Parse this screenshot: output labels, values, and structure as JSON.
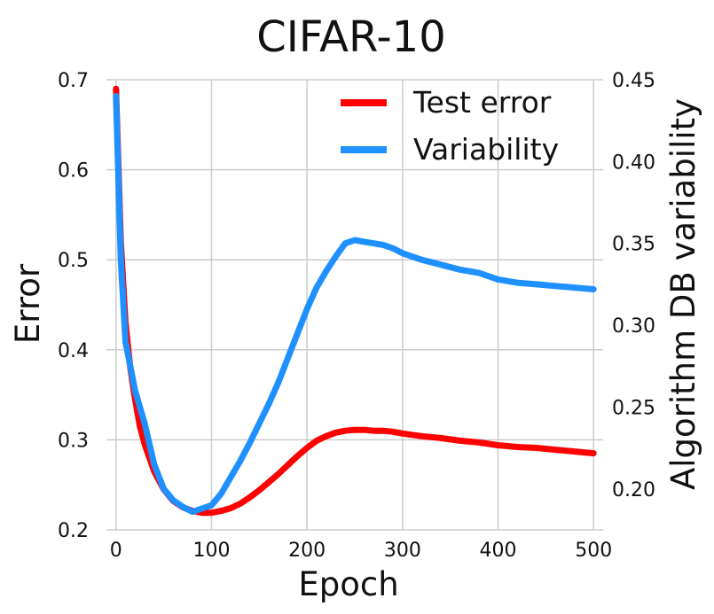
{
  "chart_data": {
    "type": "line",
    "title": "CIFAR-10",
    "xlabel": "Epoch",
    "ylabel": "Error",
    "y2label": "Algorithm DB variability",
    "xlim": [
      -10,
      510
    ],
    "ylim": [
      0.2,
      0.7
    ],
    "y2lim": [
      0.175,
      0.45
    ],
    "xticks": [
      "0",
      "100",
      "200",
      "300",
      "400",
      "500"
    ],
    "yticks": [
      "0.2",
      "0.3",
      "0.4",
      "0.5",
      "0.6",
      "0.7"
    ],
    "y2ticks": [
      "0.20",
      "0.25",
      "0.30",
      "0.35",
      "0.40",
      "0.45"
    ],
    "grid": true,
    "legend_position": "top-right",
    "series": [
      {
        "name": "Test error",
        "axis": "left",
        "color": "#ff0000",
        "x": [
          0,
          5,
          10,
          15,
          20,
          25,
          30,
          40,
          50,
          60,
          70,
          80,
          90,
          100,
          110,
          120,
          130,
          140,
          150,
          160,
          170,
          180,
          190,
          200,
          210,
          220,
          230,
          240,
          250,
          260,
          270,
          280,
          290,
          300,
          320,
          340,
          360,
          380,
          400,
          420,
          440,
          460,
          480,
          500
        ],
        "y": [
          0.69,
          0.52,
          0.43,
          0.38,
          0.345,
          0.315,
          0.295,
          0.265,
          0.245,
          0.232,
          0.225,
          0.221,
          0.219,
          0.219,
          0.221,
          0.224,
          0.229,
          0.236,
          0.244,
          0.253,
          0.262,
          0.272,
          0.282,
          0.291,
          0.299,
          0.304,
          0.308,
          0.31,
          0.311,
          0.311,
          0.31,
          0.31,
          0.309,
          0.307,
          0.304,
          0.302,
          0.299,
          0.297,
          0.294,
          0.292,
          0.291,
          0.289,
          0.287,
          0.285
        ]
      },
      {
        "name": "Variability",
        "axis": "right",
        "color": "#1e90ff",
        "x": [
          0,
          5,
          10,
          15,
          20,
          25,
          30,
          40,
          50,
          60,
          70,
          80,
          90,
          100,
          110,
          120,
          130,
          140,
          150,
          160,
          170,
          180,
          190,
          200,
          210,
          220,
          230,
          240,
          250,
          260,
          270,
          280,
          290,
          300,
          320,
          340,
          360,
          380,
          400,
          420,
          440,
          460,
          480,
          500
        ],
        "y": [
          0.44,
          0.34,
          0.29,
          0.275,
          0.26,
          0.25,
          0.24,
          0.215,
          0.2,
          0.193,
          0.189,
          0.186,
          0.188,
          0.19,
          0.197,
          0.207,
          0.217,
          0.228,
          0.24,
          0.252,
          0.265,
          0.28,
          0.295,
          0.31,
          0.323,
          0.333,
          0.342,
          0.35,
          0.352,
          0.351,
          0.35,
          0.349,
          0.347,
          0.344,
          0.34,
          0.337,
          0.334,
          0.332,
          0.328,
          0.326,
          0.325,
          0.324,
          0.323,
          0.322
        ]
      }
    ]
  }
}
